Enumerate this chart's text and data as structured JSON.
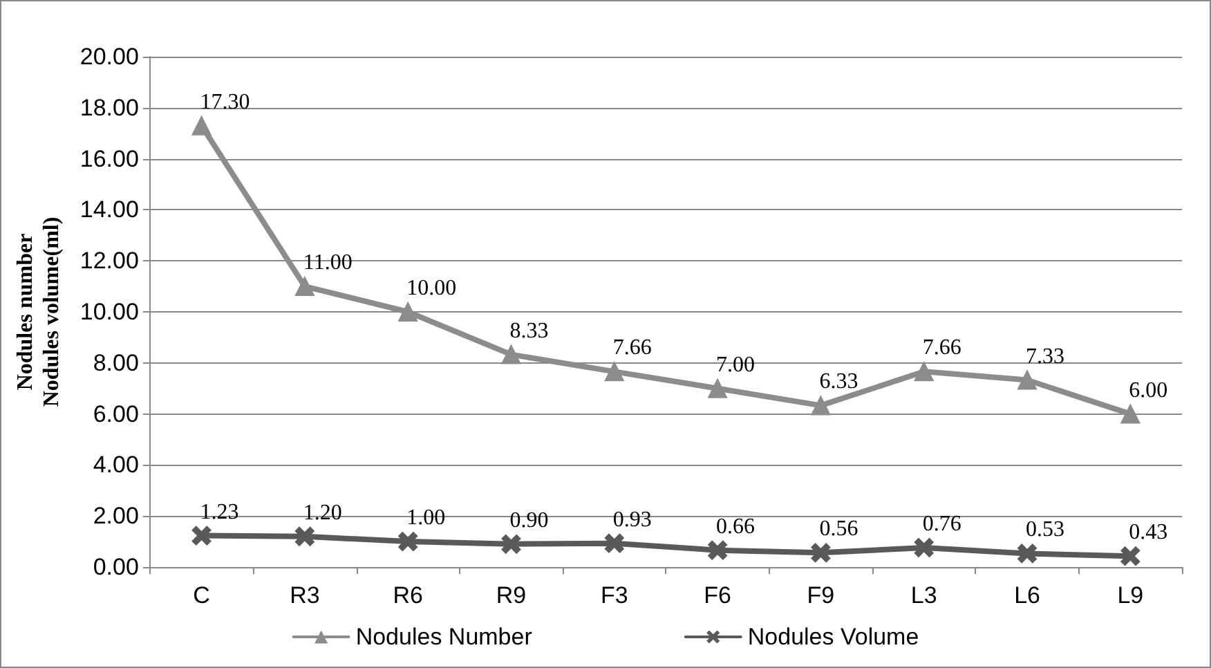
{
  "chart_data": {
    "type": "line",
    "ylabel": "Nodules number\nNodules volume(ml)",
    "categories": [
      "C",
      "R3",
      "R6",
      "R9",
      "F3",
      "F6",
      "F9",
      "L3",
      "L6",
      "L9"
    ],
    "series": [
      {
        "name": "Nodules Number",
        "color": "#8c8c8c",
        "marker": "triangle",
        "values": [
          17.3,
          11.0,
          10.0,
          8.33,
          7.66,
          7.0,
          6.33,
          7.66,
          7.33,
          6.0
        ],
        "value_labels": [
          "17.30",
          "11.00",
          "10.00",
          "8.33",
          "7.66",
          "7.00",
          "6.33",
          "7.66",
          "7.33",
          "6.00"
        ]
      },
      {
        "name": "Nodules Volume",
        "color": "#595959",
        "marker": "cross",
        "values": [
          1.23,
          1.2,
          1.0,
          0.9,
          0.93,
          0.66,
          0.56,
          0.76,
          0.53,
          0.43
        ],
        "value_labels": [
          "1.23",
          "1.20",
          "1.00",
          "0.90",
          "0.93",
          "0.66",
          "0.56",
          "0.76",
          "0.53",
          "0.43"
        ]
      }
    ],
    "ylim": [
      0,
      20
    ],
    "yticks": [
      {
        "value": 0,
        "label": "0.00"
      },
      {
        "value": 2,
        "label": "2.00"
      },
      {
        "value": 4,
        "label": "4.00"
      },
      {
        "value": 6,
        "label": "6.00"
      },
      {
        "value": 8,
        "label": "8.00"
      },
      {
        "value": 10,
        "label": "10.00"
      },
      {
        "value": 12,
        "label": "12.00"
      },
      {
        "value": 14,
        "label": "14.00"
      },
      {
        "value": 16,
        "label": "16.00"
      },
      {
        "value": 18,
        "label": "18.00"
      },
      {
        "value": 20,
        "label": "20.00"
      }
    ],
    "grid": "y",
    "legend": "bottom",
    "line_style": "solid"
  }
}
